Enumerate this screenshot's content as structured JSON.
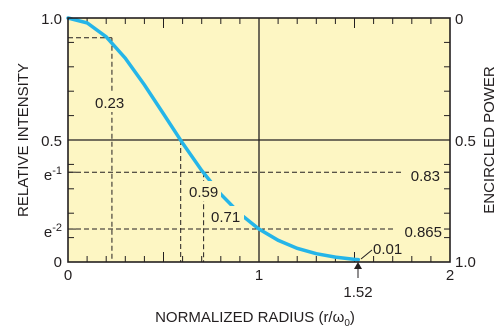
{
  "chart_data": {
    "type": "line",
    "x": [
      0,
      0.1,
      0.2,
      0.3,
      0.4,
      0.5,
      0.6,
      0.7,
      0.8,
      0.9,
      1.0,
      1.1,
      1.2,
      1.3,
      1.4,
      1.5,
      1.52
    ],
    "series": [
      {
        "values": [
          1.0,
          0.98,
          0.923,
          0.835,
          0.726,
          0.607,
          0.487,
          0.375,
          0.278,
          0.198,
          0.135,
          0.089,
          0.056,
          0.034,
          0.02,
          0.011,
          0.01
        ]
      }
    ],
    "xlim": [
      0,
      2
    ],
    "ylim": [
      0,
      1
    ],
    "y2lim": [
      0,
      1
    ],
    "x_ticks": [
      "0",
      "1",
      "2"
    ],
    "y_ticks": [
      "0",
      "e-2",
      "e-1",
      "0.5",
      "1.0"
    ],
    "y_tick_values": [
      0,
      0.135,
      0.368,
      0.5,
      1.0
    ],
    "y2_ticks": [
      "0",
      "0.5",
      "1.0"
    ],
    "y2_tick_values": [
      1.0,
      0.5,
      0
    ],
    "y2_inverted": true,
    "xlabel": "NORMALIZED RADIUS (r/ω",
    "xlabel_sub": "0",
    "xlabel_tail": ")",
    "ylabel": "RELATIVE INTENSITY",
    "y2label": "ENCIRCLED POWER",
    "grid": true,
    "annotations": [
      {
        "text": "0.23",
        "x": 0.23,
        "y": 0.919
      },
      {
        "text": "0.59",
        "x": 0.59,
        "y": 0.5
      },
      {
        "text": "0.71",
        "x": 0.71,
        "y": 0.368
      },
      {
        "text": "0.83",
        "x": 2.0,
        "y": 0.368
      },
      {
        "text": "0.865",
        "x": 2.0,
        "y": 0.135
      },
      {
        "text": "0.01",
        "x": 1.52,
        "y": 0.01
      },
      {
        "text": "1.52",
        "x": 1.52,
        "y": 0
      }
    ],
    "colors": {
      "curve": "#25b5e8",
      "background": "#fdf6c3",
      "grid": "#231f20"
    }
  }
}
